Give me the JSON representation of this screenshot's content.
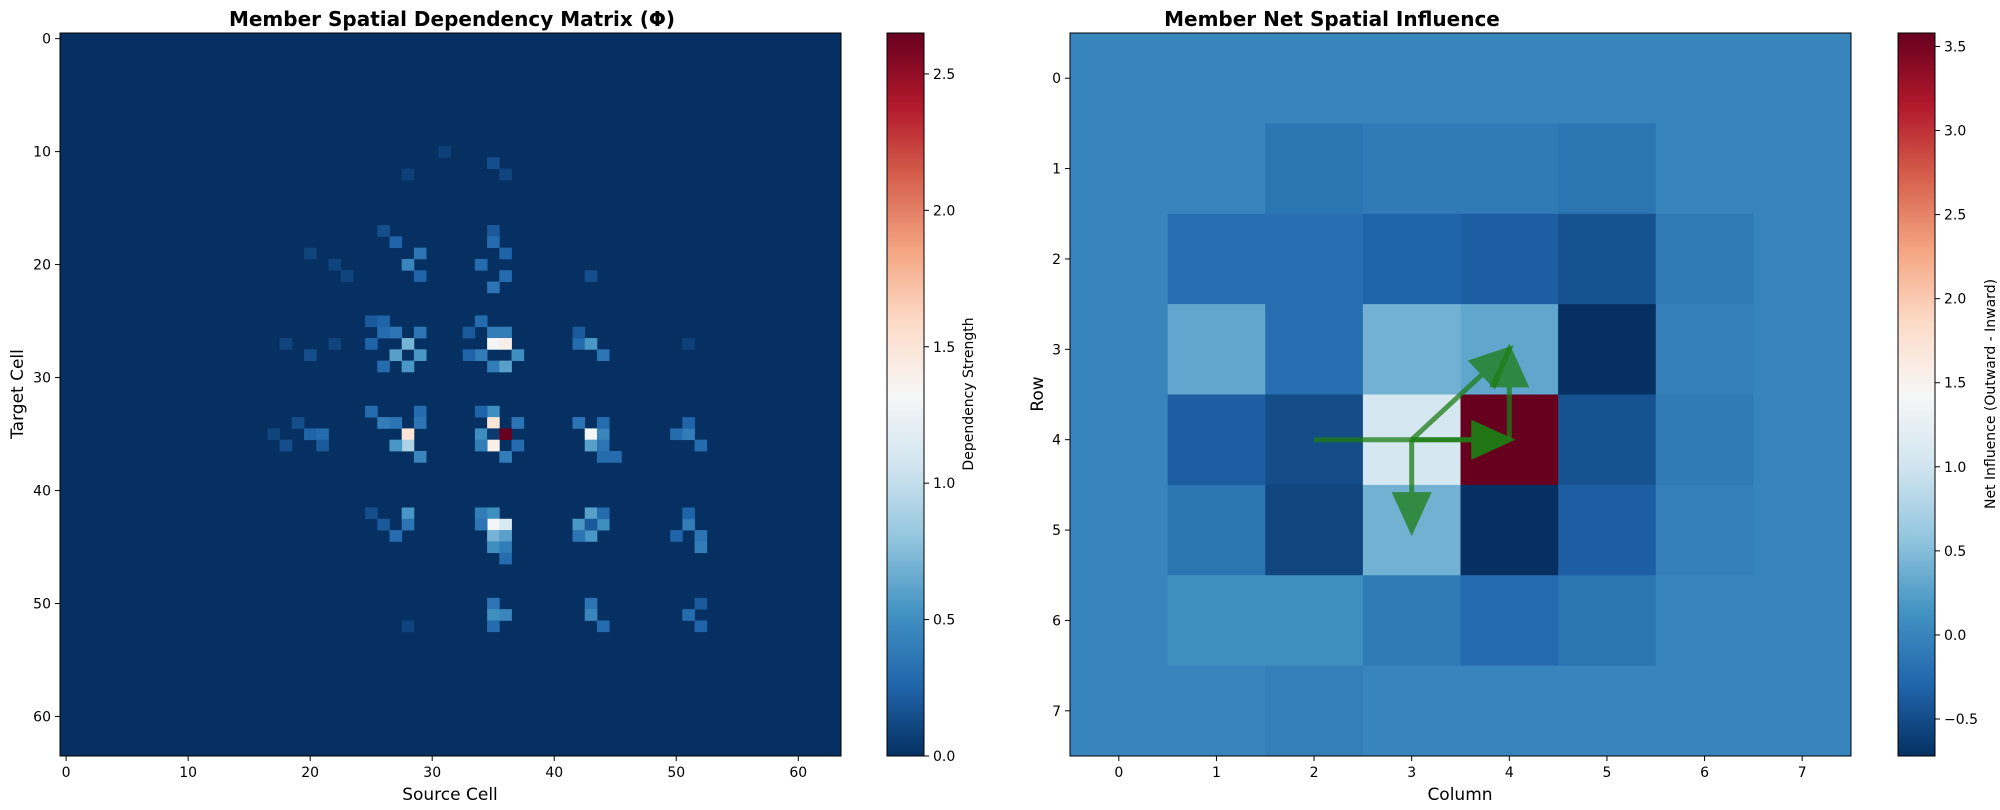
{
  "chart_data": [
    {
      "type": "heatmap",
      "title": "Member Spatial Dependency Matrix (Φ)",
      "xlabel": "Source Cell",
      "ylabel": "Target Cell",
      "colorbar_label": "Dependency Strength",
      "colormap": "RdBu_r",
      "clim": [
        0.0,
        2.65
      ],
      "xlim": [
        0,
        63
      ],
      "ylim": [
        63,
        0
      ],
      "xticks": [
        0,
        10,
        20,
        30,
        40,
        50,
        60
      ],
      "yticks": [
        0,
        10,
        20,
        30,
        40,
        50,
        60
      ],
      "colorbar_ticks": [
        0.0,
        0.5,
        1.0,
        1.5,
        2.0,
        2.5
      ],
      "size": 64,
      "background_value": 0.0,
      "nonzero_cells": [
        [
          11,
          35,
          0.15
        ],
        [
          12,
          36,
          0.1
        ],
        [
          10,
          31,
          0.08
        ],
        [
          12,
          28,
          0.08
        ],
        [
          17,
          26,
          0.15
        ],
        [
          18,
          27,
          0.25
        ],
        [
          17,
          35,
          0.2
        ],
        [
          18,
          35,
          0.3
        ],
        [
          19,
          36,
          0.25
        ],
        [
          19,
          29,
          0.35
        ],
        [
          20,
          28,
          0.45
        ],
        [
          21,
          29,
          0.25
        ],
        [
          20,
          34,
          0.3
        ],
        [
          21,
          36,
          0.3
        ],
        [
          22,
          35,
          0.35
        ],
        [
          20,
          22,
          0.1
        ],
        [
          21,
          23,
          0.1
        ],
        [
          19,
          20,
          0.1
        ],
        [
          21,
          43,
          0.15
        ],
        [
          25,
          25,
          0.2
        ],
        [
          25,
          26,
          0.25
        ],
        [
          26,
          27,
          0.35
        ],
        [
          26,
          29,
          0.35
        ],
        [
          27,
          28,
          0.7
        ],
        [
          28,
          27,
          0.6
        ],
        [
          28,
          29,
          0.55
        ],
        [
          29,
          28,
          0.55
        ],
        [
          26,
          26,
          0.3
        ],
        [
          29,
          26,
          0.3
        ],
        [
          27,
          25,
          0.25
        ],
        [
          25,
          34,
          0.3
        ],
        [
          26,
          35,
          0.4
        ],
        [
          26,
          36,
          0.4
        ],
        [
          27,
          35,
          1.3
        ],
        [
          27,
          36,
          1.4
        ],
        [
          28,
          34,
          0.4
        ],
        [
          28,
          37,
          0.5
        ],
        [
          29,
          35,
          0.4
        ],
        [
          29,
          36,
          0.6
        ],
        [
          28,
          33,
          0.25
        ],
        [
          26,
          33,
          0.2
        ],
        [
          27,
          42,
          0.3
        ],
        [
          27,
          43,
          0.55
        ],
        [
          28,
          44,
          0.35
        ],
        [
          26,
          42,
          0.2
        ],
        [
          27,
          18,
          0.1
        ],
        [
          28,
          20,
          0.15
        ],
        [
          27,
          22,
          0.1
        ],
        [
          27,
          51,
          0.08
        ],
        [
          33,
          25,
          0.3
        ],
        [
          34,
          26,
          0.4
        ],
        [
          34,
          27,
          0.35
        ],
        [
          35,
          28,
          1.5
        ],
        [
          36,
          28,
          0.9
        ],
        [
          36,
          27,
          0.55
        ],
        [
          37,
          29,
          0.45
        ],
        [
          33,
          29,
          0.3
        ],
        [
          34,
          29,
          0.35
        ],
        [
          33,
          35,
          0.5
        ],
        [
          34,
          35,
          1.5
        ],
        [
          35,
          34,
          0.5
        ],
        [
          35,
          35,
          0.05
        ],
        [
          35,
          36,
          2.65
        ],
        [
          36,
          35,
          1.4
        ],
        [
          36,
          34,
          0.4
        ],
        [
          37,
          36,
          0.4
        ],
        [
          34,
          37,
          0.35
        ],
        [
          36,
          37,
          0.3
        ],
        [
          33,
          34,
          0.25
        ],
        [
          34,
          42,
          0.35
        ],
        [
          35,
          43,
          1.3
        ],
        [
          36,
          43,
          0.6
        ],
        [
          35,
          44,
          0.45
        ],
        [
          36,
          44,
          0.35
        ],
        [
          37,
          44,
          0.3
        ],
        [
          34,
          44,
          0.3
        ],
        [
          37,
          45,
          0.3
        ],
        [
          35,
          50,
          0.3
        ],
        [
          35,
          51,
          0.4
        ],
        [
          36,
          52,
          0.3
        ],
        [
          34,
          51,
          0.25
        ],
        [
          35,
          20,
          0.25
        ],
        [
          35,
          21,
          0.3
        ],
        [
          36,
          21,
          0.2
        ],
        [
          35,
          17,
          0.1
        ],
        [
          34,
          19,
          0.15
        ],
        [
          36,
          18,
          0.15
        ],
        [
          42,
          28,
          0.55
        ],
        [
          43,
          28,
          0.35
        ],
        [
          43,
          26,
          0.2
        ],
        [
          44,
          27,
          0.3
        ],
        [
          42,
          25,
          0.15
        ],
        [
          42,
          34,
          0.4
        ],
        [
          42,
          35,
          0.5
        ],
        [
          43,
          35,
          1.3
        ],
        [
          43,
          36,
          1.1
        ],
        [
          44,
          35,
          0.7
        ],
        [
          44,
          36,
          0.6
        ],
        [
          45,
          35,
          0.5
        ],
        [
          45,
          36,
          0.4
        ],
        [
          43,
          34,
          0.35
        ],
        [
          46,
          36,
          0.3
        ],
        [
          42,
          43,
          0.6
        ],
        [
          43,
          42,
          0.55
        ],
        [
          43,
          44,
          0.5
        ],
        [
          44,
          43,
          0.55
        ],
        [
          44,
          42,
          0.35
        ],
        [
          43,
          43,
          0.2
        ],
        [
          42,
          44,
          0.3
        ],
        [
          43,
          51,
          0.4
        ],
        [
          44,
          52,
          0.35
        ],
        [
          45,
          52,
          0.4
        ],
        [
          42,
          51,
          0.25
        ],
        [
          44,
          50,
          0.25
        ],
        [
          50,
          35,
          0.35
        ],
        [
          51,
          35,
          0.5
        ],
        [
          51,
          36,
          0.45
        ],
        [
          52,
          35,
          0.3
        ],
        [
          50,
          43,
          0.35
        ],
        [
          51,
          43,
          0.45
        ],
        [
          52,
          44,
          0.3
        ],
        [
          51,
          51,
          0.3
        ],
        [
          52,
          52,
          0.25
        ],
        [
          50,
          52,
          0.2
        ],
        [
          52,
          28,
          0.1
        ]
      ]
    },
    {
      "type": "heatmap",
      "title": "Member Net Spatial Influence",
      "xlabel": "Column",
      "ylabel": "Row",
      "colorbar_label": "Net Influence (Outward - Inward)",
      "colormap": "RdBu_r",
      "clim": [
        -0.72,
        3.58
      ],
      "xticks": [
        0,
        1,
        2,
        3,
        4,
        5,
        6,
        7
      ],
      "yticks": [
        0,
        1,
        2,
        3,
        4,
        5,
        6,
        7
      ],
      "colorbar_ticks": [
        -0.5,
        0.0,
        0.5,
        1.0,
        1.5,
        2.0,
        2.5,
        3.0,
        3.5
      ],
      "values": [
        [
          0.0,
          0.0,
          0.0,
          0.0,
          0.0,
          0.0,
          0.0,
          0.0
        ],
        [
          0.0,
          0.0,
          -0.15,
          -0.1,
          -0.1,
          -0.15,
          0.0,
          0.0
        ],
        [
          0.0,
          -0.2,
          -0.2,
          -0.3,
          -0.35,
          -0.45,
          -0.1,
          0.0
        ],
        [
          0.0,
          0.3,
          -0.2,
          0.4,
          0.3,
          -0.72,
          -0.05,
          0.0
        ],
        [
          0.0,
          -0.35,
          -0.5,
          1.05,
          3.58,
          -0.45,
          -0.1,
          0.0
        ],
        [
          0.0,
          -0.15,
          -0.55,
          0.4,
          -0.72,
          -0.35,
          -0.05,
          0.0
        ],
        [
          0.0,
          0.1,
          0.1,
          -0.1,
          -0.25,
          -0.15,
          0.0,
          0.0
        ],
        [
          0.0,
          0.0,
          -0.05,
          0.0,
          0.0,
          0.0,
          0.0,
          0.0
        ]
      ],
      "arrows": [
        {
          "from": [
            2,
            4
          ],
          "to": [
            4,
            4
          ]
        },
        {
          "from": [
            3,
            4
          ],
          "to": [
            4,
            4
          ]
        },
        {
          "from": [
            3,
            4
          ],
          "to": [
            4,
            3
          ]
        },
        {
          "from": [
            3,
            4
          ],
          "to": [
            3,
            5
          ]
        },
        {
          "from": [
            4,
            4
          ],
          "to": [
            4,
            3
          ]
        }
      ],
      "arrow_color": "#1e7d14"
    }
  ]
}
